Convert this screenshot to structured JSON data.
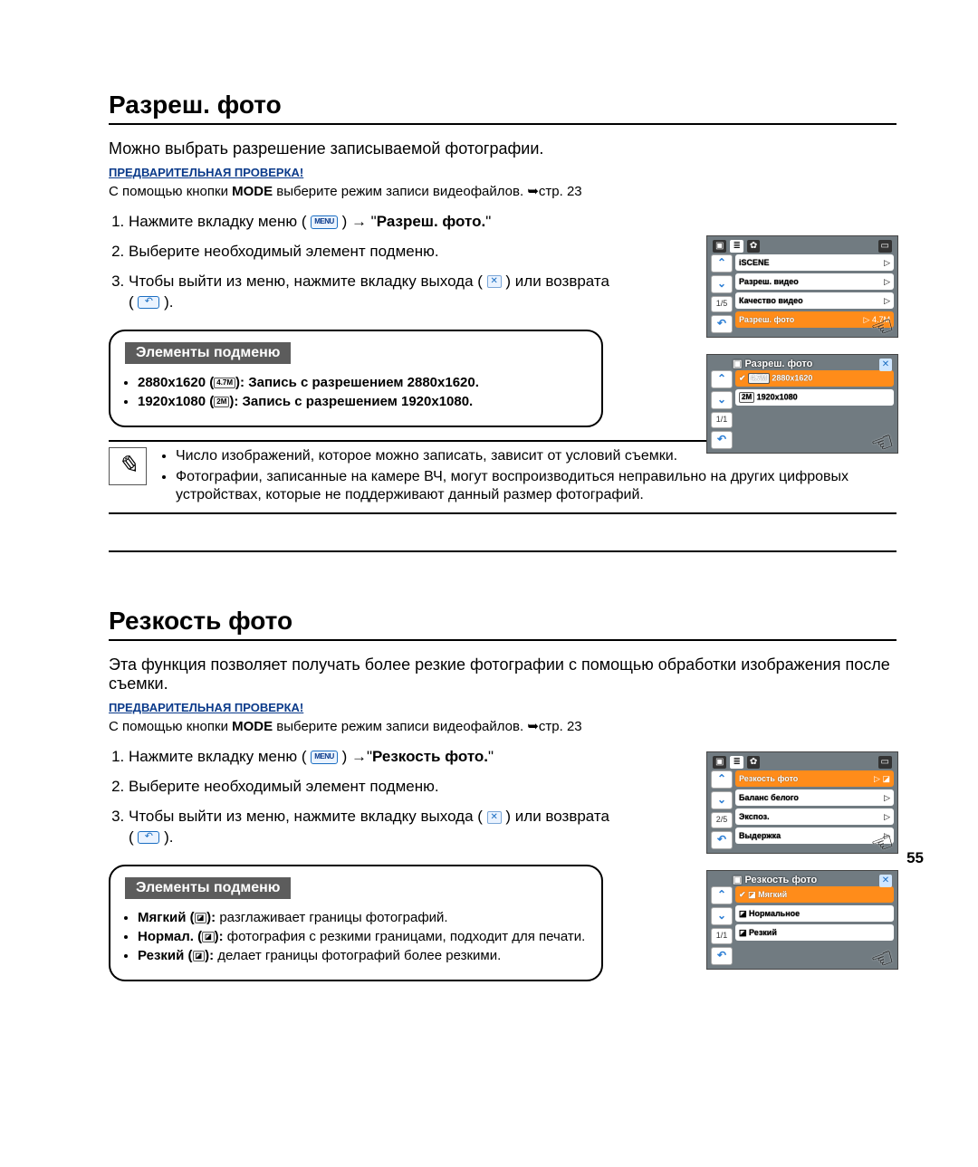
{
  "page_number": "55",
  "s1": {
    "title": "Разреш. фото",
    "intro": "Можно выбрать разрешение записываемой фотографии.",
    "precheck": "ПРЕДВАРИТЕЛЬНАЯ ПРОВЕРКА!",
    "precheck_note_a": "С помощью кнопки ",
    "precheck_note_b": "MODE",
    "precheck_note_c": " выберите режим записи видеофайлов. ➥стр. 23",
    "step1a": "Нажмите вкладку меню (",
    "step1b": ") → \"",
    "step1c": "Разреш. фото.",
    "step1d": "\"",
    "step2": "Выберите необходимый элемент подменю.",
    "step3a": "Чтобы выйти из меню, нажмите вкладку выхода (",
    "step3b": ") или возврата (",
    "step3c": ").",
    "submenu_header": "Элементы подменю",
    "res1": "2880x1620 (",
    "res1b": "): Запись с разрешением 2880x1620.",
    "res1_badge": "4.7M",
    "res2": "1920x1080 (",
    "res2b": "): Запись с разрешением 1920x1080.",
    "res2_badge": "2M",
    "note1": "Число изображений, которое можно записать, зависит от условий съемки.",
    "note2": "Фотографии, записанные на камере ВЧ, могут воспроизводиться неправильно на других цифровых устройствах, которые не поддерживают данный размер фотографий.",
    "cam1": {
      "r1": "iSCENE",
      "r2": "Разреш. видео",
      "r3": "Качество видео",
      "r4": "Разреш. фото",
      "r4_badge": "4.7M",
      "page": "1/5"
    },
    "cam2": {
      "title": "Разреш. фото",
      "opt1": "2880x1620",
      "opt1_badge": "4.7M",
      "opt2": "1920x1080",
      "opt2_badge": "2M",
      "page": "1/1"
    }
  },
  "s2": {
    "title": "Резкость фото",
    "intro": "Эта функция позволяет получать более резкие фотографии с помощью обработки изображения после съемки.",
    "precheck": "ПРЕДВАРИТЕЛЬНАЯ ПРОВЕРКА!",
    "precheck_note_a": "С помощью кнопки ",
    "precheck_note_b": "MODE",
    "precheck_note_c": " выберите режим записи видеофайлов. ➥стр. 23",
    "step1a": "Нажмите вкладку меню (",
    "step1b": ") →\"",
    "step1c": "Резкость фото.",
    "step1d": "\"",
    "step2": "Выберите необходимый элемент подменю.",
    "step3a": "Чтобы выйти из меню, нажмите вкладку выхода (",
    "step3b": ") или возврата (",
    "step3c": ").",
    "submenu_header": "Элементы подменю",
    "it1": "Мягкий (",
    "it1b": "): ",
    "it1c": "разглаживает границы фотографий.",
    "it2": "Нормал. (",
    "it2b": "): ",
    "it2c": "фотография с резкими границами, подходит для печати.",
    "it3": "Резкий (",
    "it3b": "): ",
    "it3c": "делает границы фотографий более резкими.",
    "cam1": {
      "r1": "Резкость фото",
      "r2": "Баланс белого",
      "r3": "Экспоз.",
      "r4": "Выдержка",
      "page": "2/5"
    },
    "cam2": {
      "title": "Резкость фото",
      "opt1": "Мягкий",
      "opt2": "Нормальное",
      "opt3": "Резкий",
      "page": "1/1"
    }
  },
  "icons": {
    "menu": "MENU",
    "close": "✕",
    "back": "↶",
    "up": "⌃",
    "down": "⌄",
    "play": "▷",
    "check": "✔",
    "sharp": "◪"
  }
}
